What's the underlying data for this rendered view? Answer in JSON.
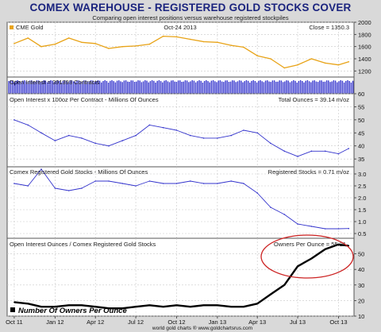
{
  "header": {
    "title": "COMEX WAREHOUSE - REGISTERED GOLD STOCKS COVER",
    "subtitle": "Comparing open interest positions versus warehouse registered stockpiles"
  },
  "footer": {
    "credit": "world gold charts ® www.goldchartsrus.com"
  },
  "colors": {
    "gold": "#e8a317",
    "blue": "#3333cc",
    "black": "#000000",
    "ellipse": "#cc2222",
    "panel_bg": "#ffffff"
  },
  "chart_data": [
    {
      "type": "line",
      "panel": "price",
      "legend": "CME Gold",
      "date_label": "Oct-24  2013",
      "readout": "Close = 1350.3",
      "series": [
        {
          "name": "CME Gold",
          "x": [
            "2011-10-01",
            "2011-11-01",
            "2011-12-01",
            "2012-01-01",
            "2012-02-01",
            "2012-03-01",
            "2012-04-01",
            "2012-05-01",
            "2012-06-01",
            "2012-07-01",
            "2012-08-01",
            "2012-09-01",
            "2012-10-01",
            "2012-11-01",
            "2012-12-01",
            "2013-01-01",
            "2013-02-01",
            "2013-03-01",
            "2013-04-01",
            "2013-05-01",
            "2013-06-01",
            "2013-07-01",
            "2013-08-01",
            "2013-09-01",
            "2013-10-01",
            "2013-10-24"
          ],
          "values": [
            1650,
            1740,
            1600,
            1640,
            1740,
            1670,
            1650,
            1570,
            1600,
            1610,
            1640,
            1770,
            1760,
            1720,
            1680,
            1670,
            1620,
            1590,
            1450,
            1400,
            1250,
            1300,
            1400,
            1330,
            1300,
            1350
          ]
        }
      ],
      "ylim": [
        1100,
        2000
      ],
      "yticks": [
        1200,
        1400,
        1600,
        1800,
        2000
      ]
    },
    {
      "type": "bar",
      "panel": "open-interest-bars",
      "readout": "Open Interest = 391393 Contracts"
    },
    {
      "type": "line",
      "panel": "open-interest",
      "label": "Open Interest x 100oz Per Contract - Millions Of Ounces",
      "readout": "Total Ounces = 39.14 m/oz",
      "series": [
        {
          "name": "Total Ounces",
          "x": [
            "2011-10-01",
            "2011-11-01",
            "2011-12-01",
            "2012-01-01",
            "2012-02-01",
            "2012-03-01",
            "2012-04-01",
            "2012-05-01",
            "2012-06-01",
            "2012-07-01",
            "2012-08-01",
            "2012-09-01",
            "2012-10-01",
            "2012-11-01",
            "2012-12-01",
            "2013-01-01",
            "2013-02-01",
            "2013-03-01",
            "2013-04-01",
            "2013-05-01",
            "2013-06-01",
            "2013-07-01",
            "2013-08-01",
            "2013-09-01",
            "2013-10-01",
            "2013-10-24"
          ],
          "values": [
            50,
            48,
            45,
            42,
            44,
            43,
            41,
            40,
            42,
            44,
            48,
            47,
            46,
            44,
            43,
            43,
            44,
            46,
            45,
            41,
            38,
            36,
            38,
            38,
            37,
            39
          ]
        }
      ],
      "ylim": [
        32,
        60
      ],
      "yticks": [
        35,
        40,
        45,
        50,
        55,
        60
      ]
    },
    {
      "type": "line",
      "panel": "registered-stocks",
      "label": "Comex Registered Gold Stocks - Millions Of Ounces",
      "readout": "Registered Stocks = 0.71 m/oz",
      "series": [
        {
          "name": "Registered Stocks",
          "x": [
            "2011-10-01",
            "2011-11-01",
            "2011-12-01",
            "2012-01-01",
            "2012-02-01",
            "2012-03-01",
            "2012-04-01",
            "2012-05-01",
            "2012-06-01",
            "2012-07-01",
            "2012-08-01",
            "2012-09-01",
            "2012-10-01",
            "2012-11-01",
            "2012-12-01",
            "2013-01-01",
            "2013-02-01",
            "2013-03-01",
            "2013-04-01",
            "2013-05-01",
            "2013-06-01",
            "2013-07-01",
            "2013-08-01",
            "2013-09-01",
            "2013-10-01",
            "2013-10-24"
          ],
          "values": [
            2.6,
            2.5,
            3.2,
            2.4,
            2.3,
            2.4,
            2.7,
            2.7,
            2.6,
            2.5,
            2.7,
            2.6,
            2.6,
            2.7,
            2.6,
            2.6,
            2.7,
            2.6,
            2.2,
            1.6,
            1.3,
            0.9,
            0.8,
            0.7,
            0.7,
            0.71
          ]
        }
      ],
      "ylim": [
        0.3,
        3.3
      ],
      "yticks": [
        0.5,
        1.0,
        1.5,
        2.0,
        2.5,
        3.0
      ]
    },
    {
      "type": "line",
      "panel": "owners-per-ounce",
      "label": "Open Interest Ounces / Comex Registered Gold Stocks",
      "readout": "Owners Per Ounce = 55.21",
      "legend": "Number Of Owners Per Ounce",
      "series": [
        {
          "name": "Number Of Owners Per Ounce",
          "x": [
            "2011-10-01",
            "2011-11-01",
            "2011-12-01",
            "2012-01-01",
            "2012-02-01",
            "2012-03-01",
            "2012-04-01",
            "2012-05-01",
            "2012-06-01",
            "2012-07-01",
            "2012-08-01",
            "2012-09-01",
            "2012-10-01",
            "2012-11-01",
            "2012-12-01",
            "2013-01-01",
            "2013-02-01",
            "2013-03-01",
            "2013-04-01",
            "2013-05-01",
            "2013-06-01",
            "2013-07-01",
            "2013-08-01",
            "2013-09-01",
            "2013-10-01",
            "2013-10-24"
          ],
          "values": [
            19,
            18,
            16,
            16,
            17,
            17,
            16,
            15,
            15,
            16,
            17,
            16,
            17,
            16,
            17,
            17,
            16,
            16,
            18,
            24,
            30,
            42,
            47,
            53,
            56,
            55.21
          ]
        }
      ],
      "ylim": [
        10,
        60
      ],
      "yticks": [
        10,
        20,
        30,
        40,
        50
      ]
    }
  ],
  "x_axis": {
    "ticks": [
      {
        "date": "2011-10-01",
        "label": "Oct 11"
      },
      {
        "date": "2012-01-01",
        "label": "Jan 12"
      },
      {
        "date": "2012-04-01",
        "label": "Apr 12"
      },
      {
        "date": "2012-07-01",
        "label": "Jul 12"
      },
      {
        "date": "2012-10-01",
        "label": "Oct 12"
      },
      {
        "date": "2013-01-01",
        "label": "Jan 13"
      },
      {
        "date": "2013-04-01",
        "label": "Apr 13"
      },
      {
        "date": "2013-07-01",
        "label": "Jul 13"
      },
      {
        "date": "2013-10-01",
        "label": "Oct 13"
      }
    ],
    "range": [
      "2011-09-15",
      "2013-11-05"
    ]
  }
}
